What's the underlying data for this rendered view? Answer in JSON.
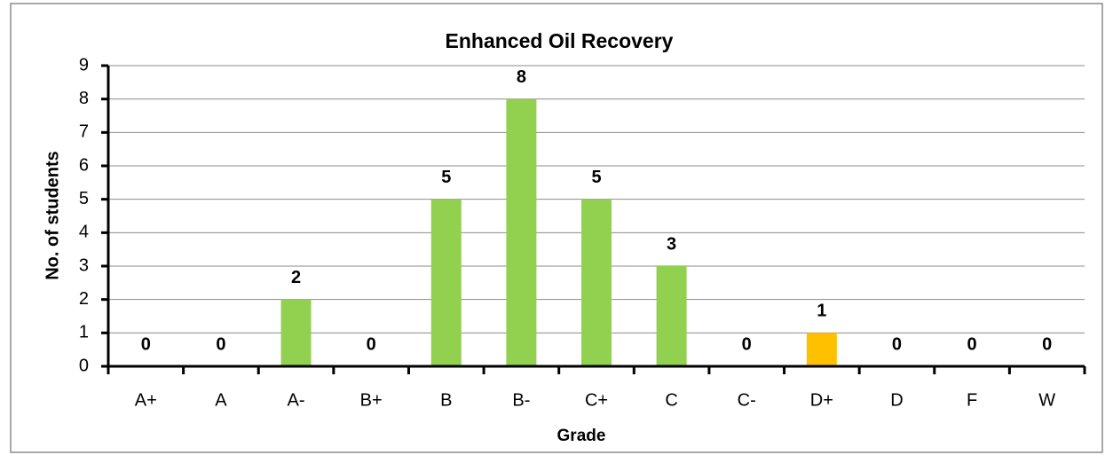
{
  "chart_data": {
    "type": "bar",
    "title": "Enhanced Oil Recovery",
    "x_label": "Grade",
    "y_label": "No. of students",
    "categories": [
      "A+",
      "A",
      "A-",
      "B+",
      "B",
      "B-",
      "C+",
      "C",
      "C-",
      "D+",
      "D",
      "F",
      "W"
    ],
    "values": [
      0,
      0,
      2,
      0,
      5,
      8,
      5,
      3,
      0,
      1,
      0,
      0,
      0
    ],
    "colors": [
      "#92d050",
      "#92d050",
      "#92d050",
      "#92d050",
      "#92d050",
      "#92d050",
      "#92d050",
      "#92d050",
      "#92d050",
      "#ffc000",
      "#92d050",
      "#92d050",
      "#92d050"
    ],
    "ylim": [
      0,
      9
    ],
    "yticks": [
      0,
      1,
      2,
      3,
      4,
      5,
      6,
      7,
      8,
      9
    ],
    "grid": true
  }
}
